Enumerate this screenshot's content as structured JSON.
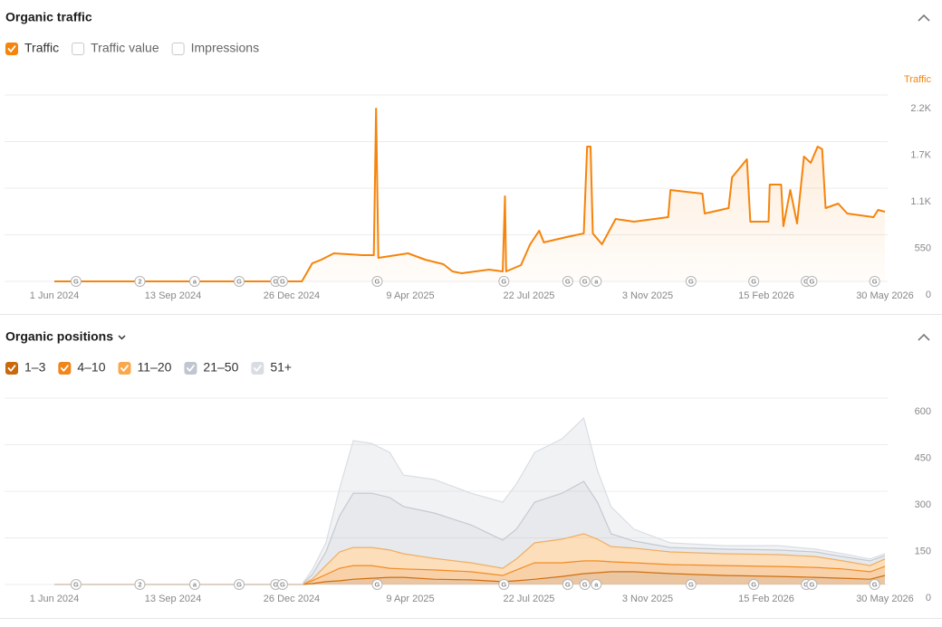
{
  "chart_data": [
    {
      "type": "line",
      "title": "Organic traffic",
      "ylabel": "Traffic",
      "inactive_metrics": [
        "Traffic value",
        "Impressions"
      ],
      "x": [
        "2024-06-01",
        "2025-01-04",
        "2025-01-13",
        "2025-01-21",
        "2025-02-01",
        "2025-02-26",
        "2025-03-08",
        "2025-03-10",
        "2025-03-12",
        "2025-04-07",
        "2025-04-22",
        "2025-05-08",
        "2025-05-16",
        "2025-05-24",
        "2025-06-17",
        "2025-06-29",
        "2025-07-01",
        "2025-07-02",
        "2025-07-15",
        "2025-07-23",
        "2025-07-31",
        "2025-08-04",
        "2025-08-24",
        "2025-09-08",
        "2025-09-11",
        "2025-09-14",
        "2025-09-16",
        "2025-09-24",
        "2025-10-06",
        "2025-10-22",
        "2025-11-21",
        "2025-11-23",
        "2025-12-21",
        "2025-12-23",
        "2026-01-13",
        "2026-01-16",
        "2026-01-29",
        "2026-02-01",
        "2026-02-17",
        "2026-02-18",
        "2026-02-28",
        "2026-03-02",
        "2026-03-08",
        "2026-03-14",
        "2026-03-20",
        "2026-03-26",
        "2026-04-01",
        "2026-04-05",
        "2026-04-08",
        "2026-04-19",
        "2026-04-27",
        "2026-05-20",
        "2026-05-24",
        "2026-05-30"
      ],
      "series": [
        {
          "name": "Traffic",
          "color": "#f5840c",
          "values": [
            0,
            0,
            213,
            256,
            331,
            310,
            310,
            2040,
            278,
            331,
            256,
            203,
            117,
            96,
            139,
            117,
            1004,
            117,
            192,
            438,
            598,
            460,
            523,
            566,
            1591,
            1591,
            566,
            438,
            737,
            705,
            758,
            1079,
            1036,
            801,
            865,
            1228,
            1442,
            705,
            705,
            1143,
            1143,
            651,
            1079,
            684,
            1474,
            1399,
            1591,
            1560,
            865,
            918,
            801,
            758,
            844,
            822
          ]
        }
      ],
      "xlim": [
        "2024-06-01",
        "2026-05-30"
      ],
      "xticks": [
        {
          "value": "2024-06-01",
          "label": "1 Jun 2024"
        },
        {
          "value": "2024-09-13",
          "label": "13 Sep 2024"
        },
        {
          "value": "2024-12-26",
          "label": "26 Dec 2024"
        },
        {
          "value": "2025-04-09",
          "label": "9 Apr 2025"
        },
        {
          "value": "2025-07-22",
          "label": "22 Jul 2025"
        },
        {
          "value": "2025-11-03",
          "label": "3 Nov 2025"
        },
        {
          "value": "2026-02-15",
          "label": "15 Feb 2026"
        },
        {
          "value": "2026-05-30",
          "label": "30 May 2026"
        }
      ],
      "ylim": [
        0,
        2200
      ],
      "yticks": [
        0,
        550,
        {
          "value": 1100,
          "label": "1.1K"
        },
        {
          "value": 1650,
          "label": "1.7K"
        },
        {
          "value": 2200,
          "label": "2.2K"
        }
      ],
      "grid": true,
      "annotations": [
        {
          "x": "2024-06-20",
          "label": "G"
        },
        {
          "x": "2024-08-15",
          "label": "2"
        },
        {
          "x": "2024-10-02",
          "label": "a"
        },
        {
          "x": "2024-11-10",
          "label": "G"
        },
        {
          "x": "2024-12-12",
          "label": "G"
        },
        {
          "x": "2024-12-18",
          "label": "G"
        },
        {
          "x": "2025-03-11",
          "label": "G"
        },
        {
          "x": "2025-06-30",
          "label": "G"
        },
        {
          "x": "2025-08-25",
          "label": "G"
        },
        {
          "x": "2025-09-09",
          "label": "G"
        },
        {
          "x": "2025-09-19",
          "label": "a"
        },
        {
          "x": "2025-12-11",
          "label": "G"
        },
        {
          "x": "2026-02-04",
          "label": "G"
        },
        {
          "x": "2026-03-22",
          "label": "G"
        },
        {
          "x": "2026-03-27",
          "label": "G"
        },
        {
          "x": "2026-05-21",
          "label": "G"
        }
      ]
    },
    {
      "type": "area",
      "title": "Organic positions",
      "x": [
        "2024-06-01",
        "2025-01-04",
        "2025-01-13",
        "2025-01-25",
        "2025-02-06",
        "2025-02-18",
        "2025-03-06",
        "2025-03-22",
        "2025-04-03",
        "2025-04-30",
        "2025-06-01",
        "2025-06-29",
        "2025-07-11",
        "2025-07-27",
        "2025-08-20",
        "2025-09-08",
        "2025-09-20",
        "2025-10-02",
        "2025-10-22",
        "2025-11-23",
        "2026-01-09",
        "2026-02-26",
        "2026-03-30",
        "2026-04-23",
        "2026-05-17",
        "2026-05-30"
      ],
      "series": [
        {
          "name": "1–3",
          "color": "#c8690c",
          "values": [
            0,
            0,
            3,
            9,
            12,
            17,
            20,
            23,
            23,
            17,
            15,
            9,
            12,
            17,
            26,
            35,
            38,
            41,
            41,
            35,
            29,
            26,
            23,
            20,
            17,
            29
          ]
        },
        {
          "name": "4–10",
          "color": "#f08519",
          "values": [
            0,
            0,
            9,
            23,
            40,
            44,
            41,
            29,
            27,
            30,
            26,
            20,
            35,
            53,
            44,
            41,
            38,
            32,
            29,
            29,
            32,
            32,
            32,
            30,
            24,
            29
          ]
        },
        {
          "name": "11–20",
          "color": "#f9a94b",
          "values": [
            0,
            0,
            5,
            29,
            53,
            58,
            58,
            59,
            49,
            37,
            29,
            23,
            35,
            64,
            76,
            87,
            70,
            49,
            47,
            41,
            38,
            38,
            35,
            26,
            20,
            24
          ]
        },
        {
          "name": "21–50",
          "color": "#bfc6cf",
          "values": [
            0,
            0,
            15,
            44,
            116,
            175,
            175,
            169,
            152,
            146,
            122,
            91,
            96,
            131,
            148,
            169,
            119,
            41,
            23,
            14,
            15,
            15,
            15,
            14,
            15,
            11
          ]
        },
        {
          "name": "51+",
          "color": "#d9dde3",
          "values": [
            0,
            0,
            15,
            29,
            88,
            169,
            160,
            145,
            101,
            108,
            102,
            122,
            145,
            160,
            175,
            204,
            102,
            87,
            38,
            15,
            11,
            14,
            9,
            9,
            6,
            6
          ]
        }
      ],
      "xlim": [
        "2024-06-01",
        "2026-05-30"
      ],
      "xticks": [
        {
          "value": "2024-06-01",
          "label": "1 Jun 2024"
        },
        {
          "value": "2024-09-13",
          "label": "13 Sep 2024"
        },
        {
          "value": "2024-12-26",
          "label": "26 Dec 2024"
        },
        {
          "value": "2025-04-09",
          "label": "9 Apr 2025"
        },
        {
          "value": "2025-07-22",
          "label": "22 Jul 2025"
        },
        {
          "value": "2025-11-03",
          "label": "3 Nov 2025"
        },
        {
          "value": "2026-02-15",
          "label": "15 Feb 2026"
        },
        {
          "value": "2026-05-30",
          "label": "30 May 2026"
        }
      ],
      "ylim": [
        0,
        600
      ],
      "yticks": [
        0,
        150,
        300,
        450,
        600
      ],
      "grid": true,
      "annotations": [
        {
          "x": "2024-06-20",
          "label": "G"
        },
        {
          "x": "2024-08-15",
          "label": "2"
        },
        {
          "x": "2024-10-02",
          "label": "a"
        },
        {
          "x": "2024-11-10",
          "label": "G"
        },
        {
          "x": "2024-12-12",
          "label": "G"
        },
        {
          "x": "2024-12-18",
          "label": "G"
        },
        {
          "x": "2025-03-11",
          "label": "G"
        },
        {
          "x": "2025-06-30",
          "label": "G"
        },
        {
          "x": "2025-08-25",
          "label": "G"
        },
        {
          "x": "2025-09-09",
          "label": "G"
        },
        {
          "x": "2025-09-19",
          "label": "a"
        },
        {
          "x": "2025-12-11",
          "label": "G"
        },
        {
          "x": "2026-02-04",
          "label": "G"
        },
        {
          "x": "2026-03-22",
          "label": "G"
        },
        {
          "x": "2026-03-27",
          "label": "G"
        },
        {
          "x": "2026-05-21",
          "label": "G"
        }
      ]
    }
  ]
}
